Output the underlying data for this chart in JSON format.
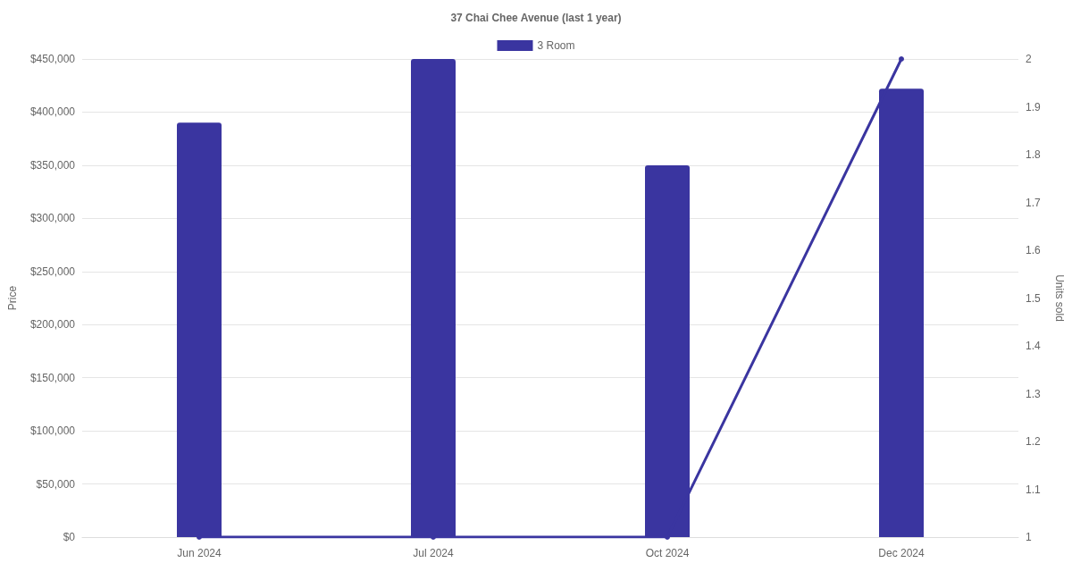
{
  "chart_data": {
    "type": "bar",
    "title": "37 Chai Chee Avenue (last 1 year)",
    "ylabel": "Price",
    "y2label": "Units sold",
    "categories": [
      "Jun 2024",
      "Jul 2024",
      "Oct 2024",
      "Dec 2024"
    ],
    "series": [
      {
        "name": "3 Room",
        "color": "#3a35a0",
        "values": [
          390000,
          450000,
          350000,
          422000
        ]
      },
      {
        "type": "line",
        "axis": "y2",
        "color": "#3a35a0",
        "values": [
          1,
          1,
          1,
          2
        ]
      }
    ],
    "ylim": [
      0,
      450000
    ],
    "yticks": [
      {
        "value": 0,
        "label": "$0"
      },
      {
        "value": 50000,
        "label": "$50,000"
      },
      {
        "value": 100000,
        "label": "$100,000"
      },
      {
        "value": 150000,
        "label": "$150,000"
      },
      {
        "value": 200000,
        "label": "$200,000"
      },
      {
        "value": 250000,
        "label": "$250,000"
      },
      {
        "value": 300000,
        "label": "$300,000"
      },
      {
        "value": 350000,
        "label": "$350,000"
      },
      {
        "value": 400000,
        "label": "$400,000"
      },
      {
        "value": 450000,
        "label": "$450,000"
      }
    ],
    "y2lim": [
      1,
      2
    ],
    "y2ticks": [
      1,
      1.1,
      1.2,
      1.3,
      1.4,
      1.5,
      1.6,
      1.7,
      1.8,
      1.9,
      2
    ],
    "grid": "y",
    "legend": "top",
    "marker": "circle",
    "line_style": "solid"
  }
}
